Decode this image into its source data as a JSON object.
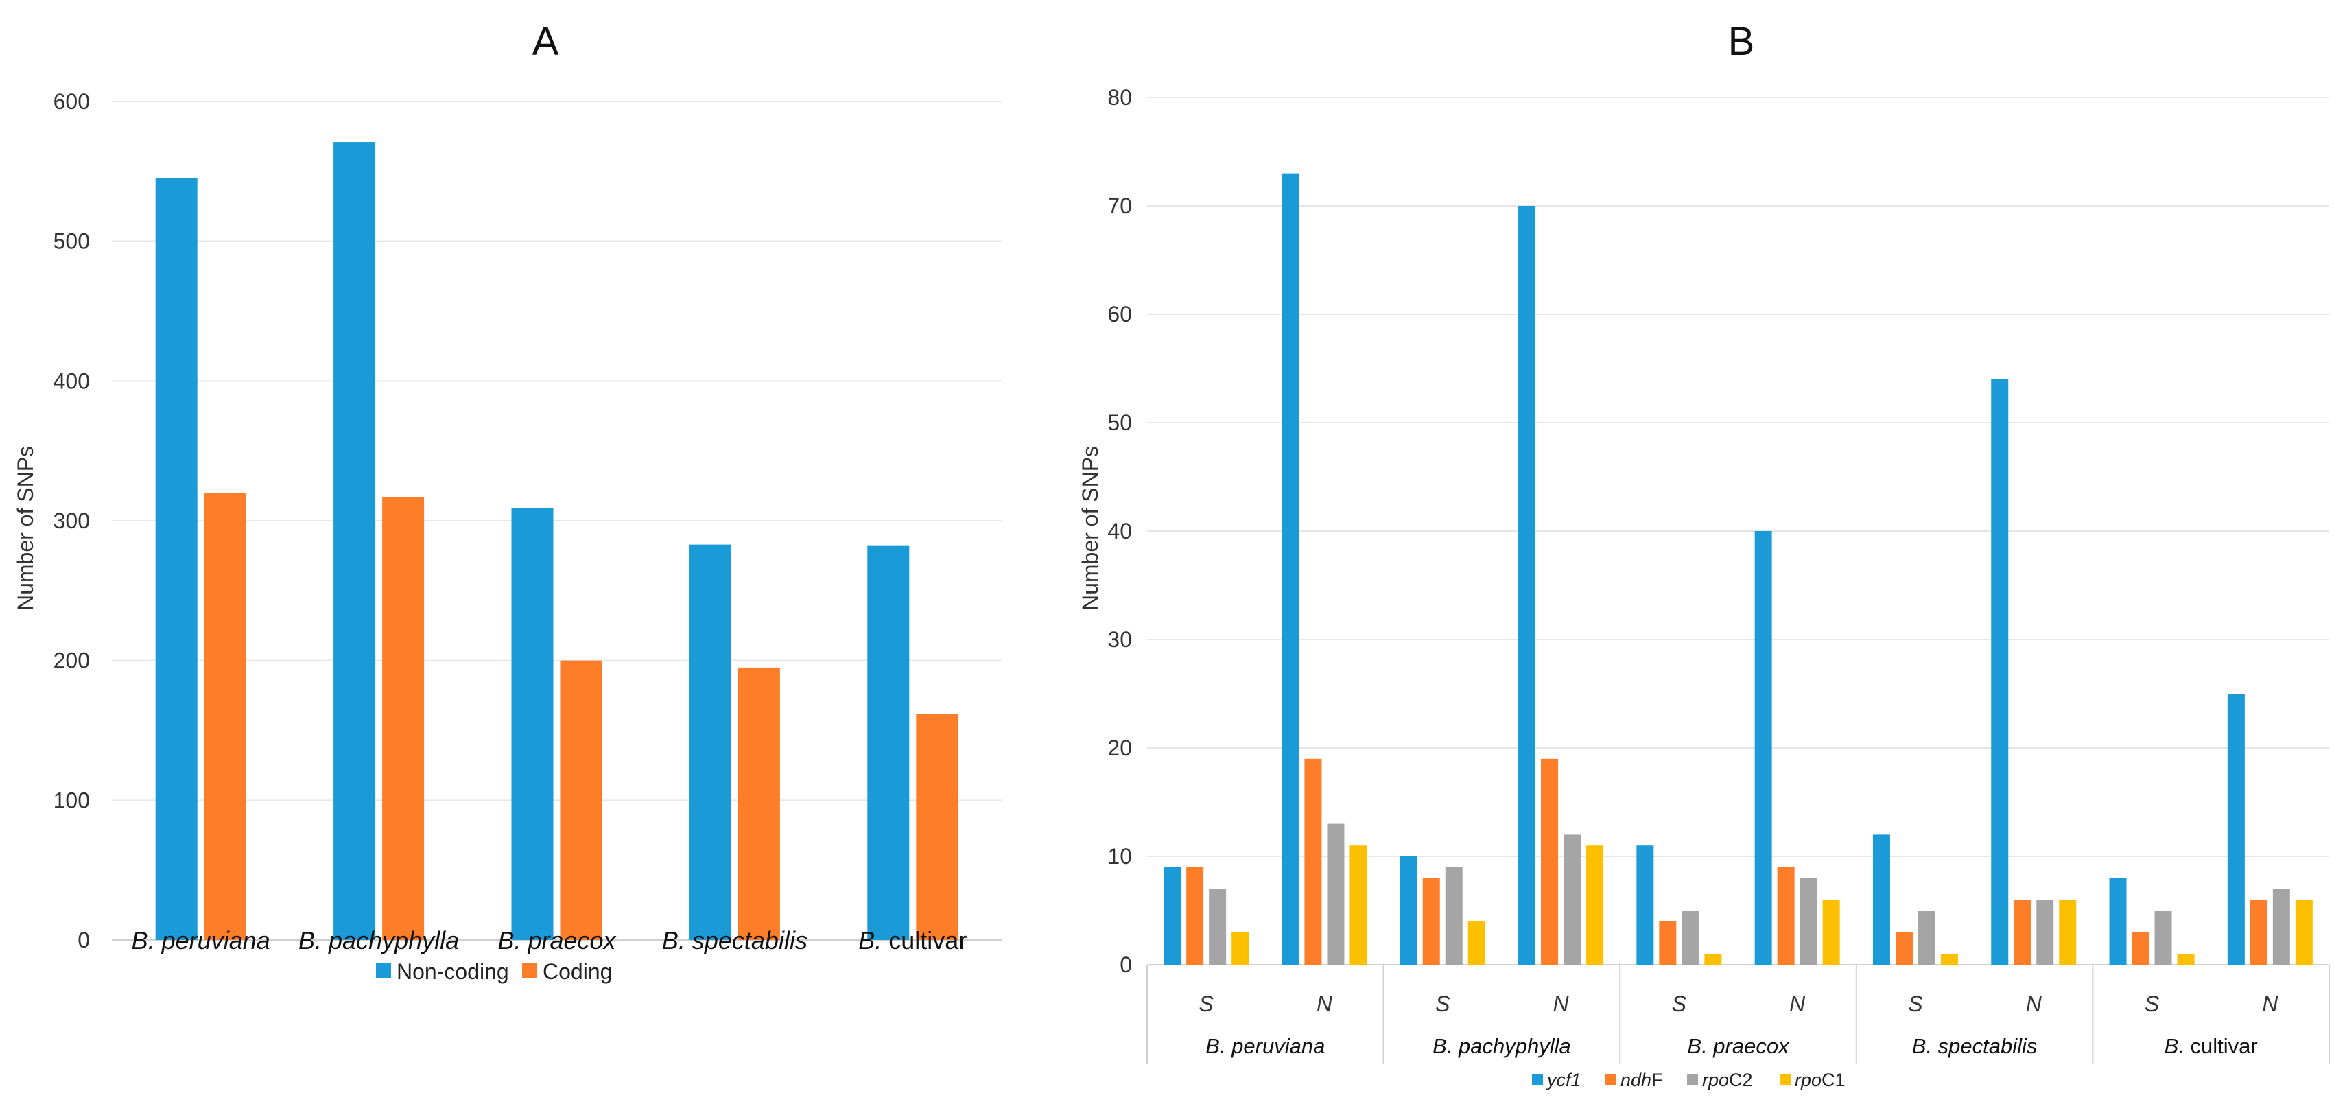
{
  "chart_data": [
    {
      "type": "bar",
      "panel_label": "A",
      "title": "",
      "xlabel": "",
      "ylabel": "Number of SNPs",
      "ylim": [
        0,
        600
      ],
      "yticks": [
        "0",
        "100",
        "200",
        "300",
        "400",
        "500",
        "600"
      ],
      "grid": true,
      "legend_position": "bottom",
      "categories": [
        {
          "prefix": "B.",
          "epithet": "peruviana",
          "italic": true
        },
        {
          "prefix": "B.",
          "epithet": "pachyphylla",
          "italic": true
        },
        {
          "prefix": "B.",
          "epithet": "praecox",
          "italic": true
        },
        {
          "prefix": "B.",
          "epithet": "spectabilis",
          "italic": true
        },
        {
          "prefix": "B.",
          "epithet": "cultivar",
          "italic": false
        }
      ],
      "series": [
        {
          "name": "Non-coding",
          "color": "#1a9ad6",
          "values": [
            545,
            571,
            309,
            283,
            282
          ]
        },
        {
          "name": "Coding",
          "color": "#fd7d29",
          "values": [
            320,
            317,
            200,
            195,
            162
          ]
        }
      ]
    },
    {
      "type": "bar",
      "panel_label": "B",
      "title": "",
      "xlabel": "",
      "ylabel": "Number of SNPs",
      "ylim": [
        0,
        80
      ],
      "yticks": [
        "0",
        "10",
        "20",
        "30",
        "40",
        "50",
        "60",
        "70",
        "80"
      ],
      "grid": true,
      "legend_position": "bottom",
      "groups": [
        {
          "prefix": "B.",
          "epithet": "peruviana",
          "italic": true
        },
        {
          "prefix": "B.",
          "epithet": "pachyphylla",
          "italic": true
        },
        {
          "prefix": "B.",
          "epithet": "praecox",
          "italic": true
        },
        {
          "prefix": "B.",
          "epithet": "spectabilis",
          "italic": true
        },
        {
          "prefix": "B.",
          "epithet": "cultivar",
          "italic": false
        }
      ],
      "subcategories": [
        "S",
        "N"
      ],
      "series": [
        {
          "name": "ycf1",
          "color": "#1a9ad6",
          "values": [
            9,
            73,
            10,
            70,
            11,
            40,
            12,
            54,
            8,
            25
          ]
        },
        {
          "name": "ndhF",
          "color": "#fd7d29",
          "values": [
            9,
            19,
            8,
            19,
            4,
            9,
            3,
            6,
            3,
            6
          ]
        },
        {
          "name": "rpoC2",
          "color": "#a5a5a5",
          "values": [
            7,
            13,
            9,
            12,
            5,
            8,
            5,
            6,
            5,
            7
          ]
        },
        {
          "name": "rpoC1",
          "color": "#fdc000",
          "values": [
            3,
            11,
            4,
            11,
            1,
            6,
            1,
            6,
            1,
            6
          ]
        }
      ]
    }
  ]
}
